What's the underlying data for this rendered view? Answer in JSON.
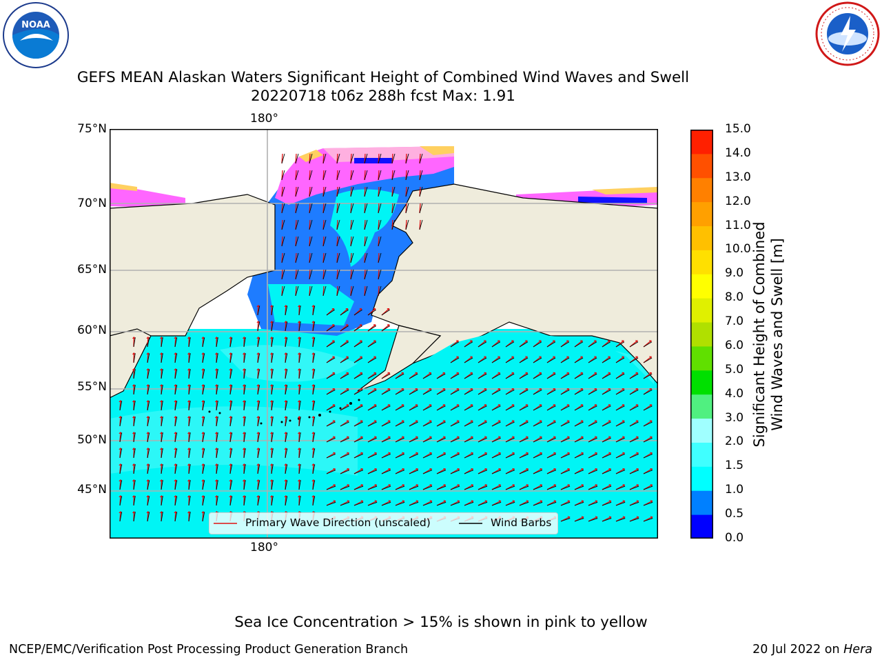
{
  "title": {
    "line1": "GEFS MEAN Alaskan Waters Significant Height of Combined Wind Waves and Swell",
    "line2": "20220718 t06z 288h fcst   Max: 1.91"
  },
  "logos": {
    "noaa": {
      "text": "NOAA",
      "ring_text": "NATIONAL OCEANIC AND ATMOSPHERIC ADMINISTRATION · U.S. DEPARTMENT OF COMMERCE"
    },
    "nws": {
      "ring_text": "NATIONAL WEATHER SERVICE"
    }
  },
  "map": {
    "lat_labels": [
      "75°N",
      "70°N",
      "65°N",
      "60°N",
      "55°N",
      "50°N",
      "45°N"
    ],
    "lon_label_top": "180°",
    "lon_label_bottom": "180°",
    "colors": {
      "land": "#efecdc",
      "ocean": "#00f7f7",
      "grid": "#b0b0b0",
      "ice": "#ff66ff"
    }
  },
  "legend": {
    "wave_direction": "Primary Wave Direction (unscaled)",
    "wind_barbs": "Wind Barbs"
  },
  "colorbar": {
    "label": "Significant Height of Combined Wind Waves and Swell [m]",
    "label_line1": "Significant Height of Combined",
    "label_line2": "Wind Waves and Swell [m]",
    "ticks": [
      "0.0",
      "0.5",
      "1.0",
      "1.5",
      "2.0",
      "3.0",
      "4.0",
      "5.0",
      "6.0",
      "7.0",
      "8.0",
      "9.0",
      "10.0",
      "11.0",
      "12.0",
      "13.0",
      "14.0",
      "15.0"
    ],
    "colors": [
      "#0000ff",
      "#0080ff",
      "#00ffff",
      "#40ffff",
      "#a0ffff",
      "#50f080",
      "#00e000",
      "#60e000",
      "#b0e000",
      "#e0f000",
      "#ffff00",
      "#ffe000",
      "#ffc000",
      "#ffa000",
      "#ff8000",
      "#ff5000",
      "#ff2000",
      "#ff0000"
    ]
  },
  "footer": {
    "note": "Sea Ice Concentration > 15% is shown in pink to yellow",
    "left": "NCEP/EMC/Verification Post Processing Product Generation Branch",
    "date": "20 Jul 2022 on ",
    "machine": "Hera"
  }
}
